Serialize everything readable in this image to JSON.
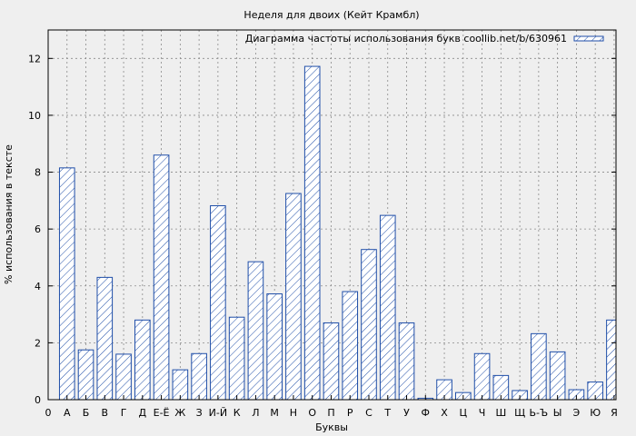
{
  "chart_data": {
    "type": "bar",
    "title": "Неделя для двоих (Кейт Крамбл)",
    "xlabel": "Буквы",
    "ylabel": "% использования в тексте",
    "legend": "Диаграмма частоты использования букв coollib.net/b/630961",
    "legend_position": "top-right",
    "grid": true,
    "ylim": [
      0,
      13
    ],
    "yticks": [
      0,
      2,
      4,
      6,
      8,
      10,
      12
    ],
    "x_start_label": "0",
    "categories": [
      "А",
      "Б",
      "В",
      "Г",
      "Д",
      "Е-Ё",
      "Ж",
      "З",
      "И-Й",
      "К",
      "Л",
      "М",
      "Н",
      "О",
      "П",
      "Р",
      "С",
      "Т",
      "У",
      "Ф",
      "Х",
      "Ц",
      "Ч",
      "Ш",
      "Щ",
      "Ь-Ъ",
      "Ы",
      "Э",
      "Ю",
      "Я"
    ],
    "values": [
      8.15,
      1.75,
      4.3,
      1.6,
      2.8,
      8.6,
      1.05,
      1.62,
      6.82,
      2.9,
      4.85,
      3.72,
      7.25,
      11.72,
      2.7,
      3.8,
      5.28,
      6.48,
      2.7,
      0.05,
      0.7,
      0.25,
      1.62,
      0.85,
      0.32,
      2.32,
      1.68,
      0.35,
      0.62,
      2.8
    ],
    "colors": {
      "bar_stroke": "#1f4ea8",
      "hatch": "#1f4ea8",
      "bar_fill": "#ffffff",
      "background": "#efefef",
      "plot_background": "#efefef",
      "grid": "#8a8a8a"
    }
  }
}
